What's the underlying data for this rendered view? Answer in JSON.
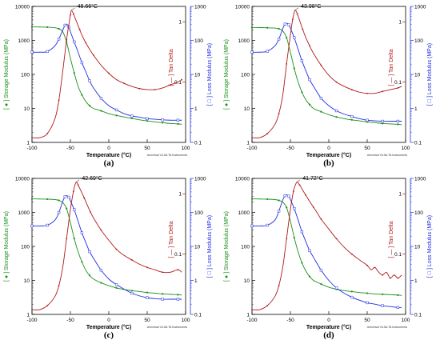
{
  "figure": {
    "panel_labels": [
      "(a)",
      "(b)",
      "(c)",
      "(d)"
    ]
  },
  "colors": {
    "storage": "#1a8f1a",
    "loss": "#1f2ee0",
    "tan": "#b01818",
    "axis_left": "#1a8f1a",
    "axis_loss": "#1f2ee0",
    "axis_tan": "#b01818",
    "text": "#000000"
  },
  "chart_data": [
    {
      "type": "line",
      "panel": "(a)",
      "peak_label": "-48.66°C",
      "xlabel": "Temperature (°C)",
      "ylabel_left": "[ ● ] Storage Modulus (MPa)",
      "ylabel_right": "[ □ ] Loss Modulus (MPa)",
      "ylabel_tan": "[ — ] Tan Delta",
      "instrument": "Universal V4.5A TA Instruments",
      "x_ticks": [
        -100,
        -50,
        0,
        50,
        100
      ],
      "left_ticks": [
        "10000",
        "1000",
        "100",
        "10",
        "1"
      ],
      "right_ticks": [
        "1000",
        "100",
        "10",
        "1",
        "0.1"
      ],
      "tan_ticks": [
        "1",
        "0.1"
      ],
      "xlim": [
        -100,
        100
      ],
      "left_log_range": [
        1,
        10000
      ],
      "right_log_range": [
        0.1,
        1000
      ],
      "tan_log_range": [
        0.01,
        1.8
      ],
      "series": [
        {
          "key": "storage",
          "x": [
            -100,
            -90,
            -80,
            -70,
            -65,
            -60,
            -55,
            -50,
            -45,
            -40,
            -35,
            -30,
            -25,
            -20,
            -10,
            0,
            10,
            20,
            30,
            40,
            50,
            60,
            70,
            80,
            90,
            95
          ],
          "y": [
            2500,
            2480,
            2450,
            2350,
            2200,
            1800,
            900,
            300,
            110,
            45,
            25,
            16,
            12,
            10,
            8.5,
            7,
            6.2,
            5.6,
            5.1,
            4.6,
            4.3,
            4.0,
            3.8,
            3.6,
            3.5,
            3.4
          ]
        },
        {
          "key": "loss",
          "x": [
            -100,
            -90,
            -80,
            -70,
            -65,
            -60,
            -57,
            -55,
            -52,
            -50,
            -45,
            -40,
            -35,
            -30,
            -25,
            -20,
            -10,
            0,
            10,
            20,
            30,
            40,
            50,
            60,
            70,
            80,
            90,
            95
          ],
          "y": [
            45,
            45,
            47,
            70,
            110,
            200,
            280,
            300,
            250,
            180,
            90,
            45,
            22,
            12,
            6.5,
            4.0,
            2.0,
            1.2,
            0.9,
            0.7,
            0.6,
            0.55,
            0.5,
            0.48,
            0.46,
            0.45,
            0.45,
            0.45
          ]
        },
        {
          "key": "tan",
          "x": [
            -100,
            -90,
            -80,
            -70,
            -65,
            -60,
            -55,
            -52,
            -50,
            -48.66,
            -46,
            -42,
            -38,
            -35,
            -30,
            -25,
            -20,
            -10,
            0,
            10,
            20,
            30,
            40,
            50,
            60,
            70,
            80,
            90,
            95
          ],
          "y": [
            0.012,
            0.012,
            0.014,
            0.025,
            0.05,
            0.15,
            0.5,
            0.9,
            1.3,
            1.55,
            1.35,
            1.0,
            0.75,
            0.6,
            0.45,
            0.35,
            0.28,
            0.19,
            0.14,
            0.11,
            0.095,
            0.085,
            0.078,
            0.075,
            0.075,
            0.08,
            0.09,
            0.1,
            0.11
          ]
        }
      ]
    },
    {
      "type": "line",
      "panel": "(b)",
      "peak_label": "-43.98°C",
      "xlabel": "Temperature (°C)",
      "ylabel_left": "[ ● ] Storage Modulus (MPa)",
      "ylabel_right": "[ □ ] Loss Modulus (MPa)",
      "ylabel_tan": "[ — ] Tan Delta",
      "instrument": "Universal V4.5A TA Instruments",
      "x_ticks": [
        -100,
        -50,
        0,
        50,
        100
      ],
      "left_ticks": [
        "10000",
        "1000",
        "100",
        "10",
        "1"
      ],
      "right_ticks": [
        "1000",
        "100",
        "10",
        "1",
        "0.1"
      ],
      "tan_ticks": [
        "1",
        "0.1"
      ],
      "xlim": [
        -100,
        100
      ],
      "left_log_range": [
        1,
        10000
      ],
      "right_log_range": [
        0.1,
        1000
      ],
      "tan_log_range": [
        0.01,
        1.8
      ],
      "series": [
        {
          "key": "storage",
          "x": [
            -100,
            -90,
            -80,
            -70,
            -65,
            -60,
            -55,
            -50,
            -45,
            -40,
            -35,
            -30,
            -25,
            -20,
            -10,
            0,
            10,
            20,
            30,
            40,
            50,
            60,
            70,
            80,
            90,
            95
          ],
          "y": [
            2400,
            2380,
            2350,
            2300,
            2200,
            1900,
            1200,
            450,
            150,
            60,
            30,
            18,
            13,
            10,
            8,
            6.5,
            5.6,
            5.0,
            4.6,
            4.3,
            4.0,
            3.8,
            3.6,
            3.5,
            3.4,
            3.3
          ]
        },
        {
          "key": "loss",
          "x": [
            -100,
            -90,
            -80,
            -70,
            -65,
            -60,
            -57,
            -55,
            -52,
            -50,
            -45,
            -40,
            -35,
            -30,
            -25,
            -20,
            -10,
            0,
            10,
            20,
            30,
            40,
            50,
            60,
            70,
            80,
            90,
            95
          ],
          "y": [
            45,
            45,
            48,
            70,
            110,
            220,
            300,
            320,
            290,
            230,
            120,
            55,
            25,
            13,
            7,
            4.5,
            2.0,
            1.2,
            0.85,
            0.68,
            0.58,
            0.5,
            0.45,
            0.43,
            0.42,
            0.42,
            0.42,
            0.42
          ]
        },
        {
          "key": "tan",
          "x": [
            -100,
            -90,
            -80,
            -70,
            -65,
            -60,
            -55,
            -50,
            -47,
            -43.98,
            -41,
            -38,
            -34,
            -30,
            -25,
            -20,
            -10,
            0,
            10,
            20,
            30,
            40,
            50,
            60,
            70,
            80,
            90,
            95
          ],
          "y": [
            0.012,
            0.012,
            0.014,
            0.02,
            0.03,
            0.06,
            0.2,
            0.6,
            1.1,
            1.55,
            1.35,
            1.05,
            0.75,
            0.55,
            0.4,
            0.3,
            0.19,
            0.13,
            0.1,
            0.085,
            0.075,
            0.068,
            0.065,
            0.065,
            0.07,
            0.075,
            0.08,
            0.085
          ]
        }
      ]
    },
    {
      "type": "line",
      "panel": "(c)",
      "peak_label": "-42.69°C",
      "xlabel": "Temperature (°C)",
      "ylabel_left": "[ ● ] Storage Modulus (MPa)",
      "ylabel_right": "[ □ ] Loss Modulus (MPa)",
      "ylabel_tan": "[ — ] Tan Delta",
      "instrument": "Universal V4.5A TA Instruments",
      "x_ticks": [
        -100,
        -50,
        0,
        50,
        100
      ],
      "left_ticks": [
        "10000",
        "1000",
        "100",
        "10",
        "1"
      ],
      "right_ticks": [
        "1000",
        "100",
        "10",
        "1",
        "0.1"
      ],
      "tan_ticks": [
        "1",
        "0.1"
      ],
      "xlim": [
        -100,
        100
      ],
      "left_log_range": [
        1,
        10000
      ],
      "right_log_range": [
        0.1,
        1000
      ],
      "tan_log_range": [
        0.01,
        1.8
      ],
      "series": [
        {
          "key": "storage",
          "x": [
            -100,
            -90,
            -80,
            -70,
            -65,
            -60,
            -55,
            -50,
            -45,
            -40,
            -35,
            -30,
            -25,
            -20,
            -10,
            0,
            10,
            20,
            30,
            40,
            50,
            60,
            70,
            80,
            90,
            95
          ],
          "y": [
            2500,
            2480,
            2450,
            2380,
            2250,
            1950,
            1300,
            500,
            170,
            70,
            35,
            20,
            14,
            11,
            8.5,
            7,
            6.0,
            5.4,
            5.0,
            4.7,
            4.4,
            4.2,
            4.0,
            3.9,
            3.8,
            3.7
          ]
        },
        {
          "key": "loss",
          "x": [
            -100,
            -90,
            -80,
            -70,
            -65,
            -60,
            -57,
            -55,
            -52,
            -50,
            -45,
            -40,
            -35,
            -30,
            -25,
            -20,
            -10,
            0,
            10,
            20,
            30,
            40,
            50,
            60,
            70,
            80,
            90,
            95
          ],
          "y": [
            40,
            40,
            42,
            60,
            100,
            210,
            290,
            310,
            280,
            220,
            120,
            55,
            25,
            13,
            7,
            4.5,
            2.0,
            1.1,
            0.75,
            0.55,
            0.42,
            0.35,
            0.31,
            0.29,
            0.28,
            0.28,
            0.28,
            0.28
          ]
        },
        {
          "key": "tan",
          "x": [
            -100,
            -90,
            -80,
            -70,
            -65,
            -60,
            -55,
            -50,
            -46,
            -42.69,
            -40,
            -36,
            -32,
            -28,
            -24,
            -20,
            -10,
            0,
            10,
            20,
            30,
            40,
            50,
            60,
            70,
            80,
            90,
            95
          ],
          "y": [
            0.012,
            0.012,
            0.014,
            0.02,
            0.03,
            0.06,
            0.18,
            0.55,
            1.1,
            1.55,
            1.4,
            1.1,
            0.85,
            0.65,
            0.5,
            0.4,
            0.25,
            0.17,
            0.12,
            0.095,
            0.08,
            0.068,
            0.06,
            0.055,
            0.05,
            0.05,
            0.055,
            0.05
          ]
        }
      ]
    },
    {
      "type": "line",
      "panel": "(d)",
      "peak_label": "-41.72°C",
      "xlabel": "Temperature (°C)",
      "ylabel_left": "[ ● ] Storage Modulus (MPa)",
      "ylabel_right": "[ □ ] Loss Modulus (MPa)",
      "ylabel_tan": "[ — ] Tan Delta",
      "instrument": "Universal V4.5A TA Instruments",
      "x_ticks": [
        -100,
        -50,
        0,
        50,
        100
      ],
      "left_ticks": [
        "10000",
        "1000",
        "100",
        "10",
        "1"
      ],
      "right_ticks": [
        "1000",
        "100",
        "10",
        "1",
        "0.1"
      ],
      "tan_ticks": [
        "1",
        "0.1"
      ],
      "xlim": [
        -100,
        100
      ],
      "left_log_range": [
        1,
        10000
      ],
      "right_log_range": [
        0.1,
        1000
      ],
      "tan_log_range": [
        0.01,
        1.8
      ],
      "series": [
        {
          "key": "storage",
          "x": [
            -100,
            -90,
            -80,
            -70,
            -65,
            -60,
            -55,
            -50,
            -45,
            -40,
            -35,
            -30,
            -25,
            -20,
            -10,
            0,
            10,
            20,
            30,
            40,
            50,
            60,
            70,
            80,
            90,
            95
          ],
          "y": [
            2500,
            2480,
            2450,
            2380,
            2250,
            2000,
            1400,
            550,
            180,
            70,
            33,
            19,
            13,
            10,
            7.8,
            6.3,
            5.5,
            5.0,
            4.7,
            4.4,
            4.2,
            4.0,
            3.9,
            3.8,
            3.7,
            3.6
          ]
        },
        {
          "key": "loss",
          "x": [
            -100,
            -90,
            -80,
            -70,
            -65,
            -60,
            -57,
            -55,
            -52,
            -50,
            -45,
            -40,
            -35,
            -30,
            -25,
            -20,
            -10,
            0,
            10,
            20,
            30,
            40,
            50,
            60,
            70,
            80,
            90,
            95
          ],
          "y": [
            40,
            40,
            42,
            60,
            110,
            230,
            310,
            330,
            300,
            240,
            130,
            60,
            27,
            14,
            7.5,
            4.8,
            2.0,
            1.0,
            0.6,
            0.42,
            0.32,
            0.26,
            0.22,
            0.2,
            0.18,
            0.17,
            0.16,
            0.16
          ]
        },
        {
          "key": "tan",
          "x": [
            -100,
            -90,
            -80,
            -70,
            -65,
            -60,
            -55,
            -50,
            -46,
            -41.72,
            -38,
            -34,
            -30,
            -25,
            -20,
            -15,
            -10,
            0,
            10,
            20,
            30,
            40,
            50,
            55,
            60,
            65,
            70,
            75,
            80,
            85,
            90,
            95
          ],
          "y": [
            0.012,
            0.012,
            0.014,
            0.02,
            0.03,
            0.06,
            0.18,
            0.55,
            1.1,
            1.55,
            1.4,
            1.15,
            0.95,
            0.75,
            0.6,
            0.48,
            0.38,
            0.26,
            0.18,
            0.13,
            0.1,
            0.08,
            0.065,
            0.055,
            0.06,
            0.05,
            0.045,
            0.05,
            0.04,
            0.045,
            0.04,
            0.045
          ]
        }
      ]
    }
  ]
}
